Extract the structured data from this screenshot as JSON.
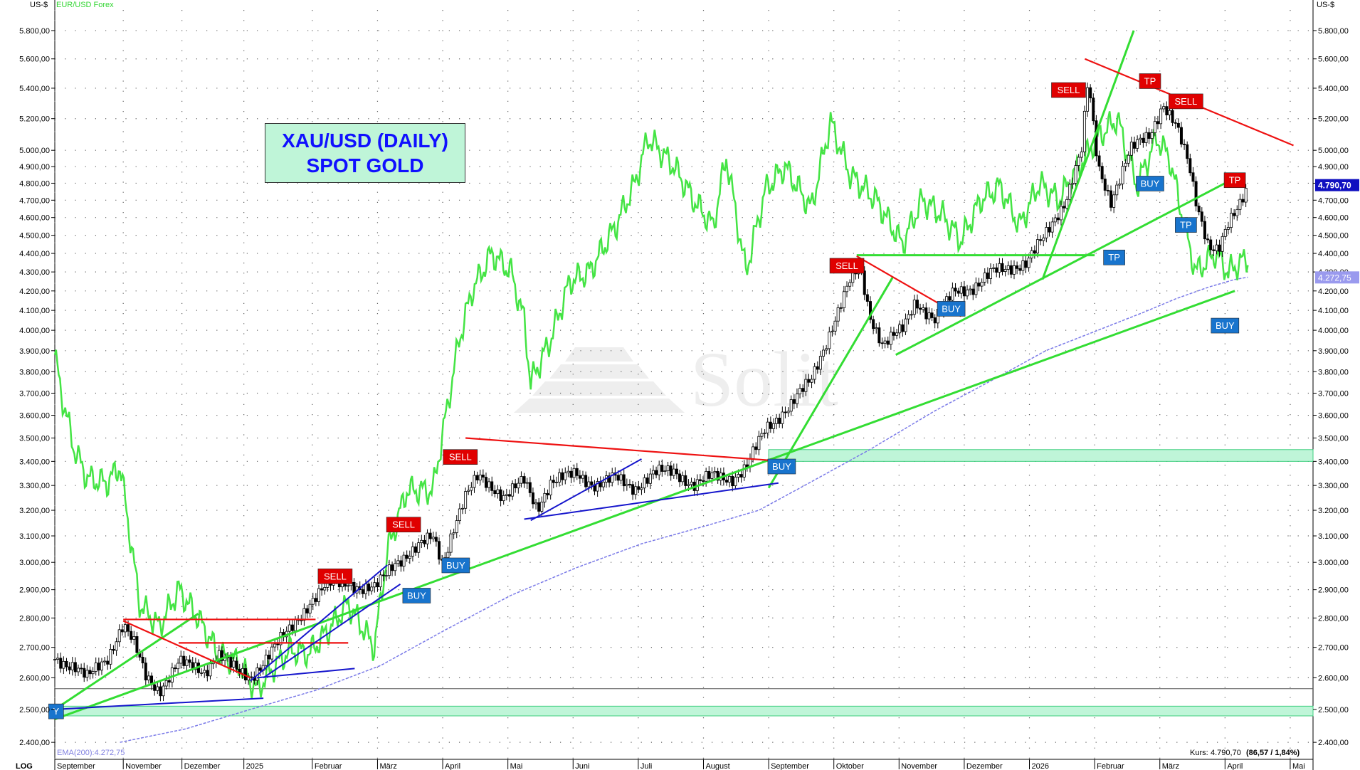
{
  "chart_data": {
    "type": "candlestick",
    "title_line1": "XAU/USD (DAILY)",
    "title_line2": "SPOT GOLD",
    "currency_label_left": "US-$",
    "currency_label_right": "US-$",
    "secondary_series_label": "EUR/USD Forex",
    "scale_label": "LOG",
    "ema_label": "EMA(200):4.272,75",
    "price_line_label": "Kurs:",
    "price_value": "4.790,70",
    "price_change": "(86,57 / 1,84%)",
    "last_price_badge": "4.790,70",
    "ema_badge": "4.272,75",
    "y_scale": "log",
    "ylim": [
      2350,
      5950
    ],
    "y_ticks": [
      2400,
      2500,
      2600,
      2700,
      2800,
      2900,
      3000,
      3100,
      3200,
      3300,
      3400,
      3500,
      3600,
      3700,
      3800,
      3900,
      4000,
      4100,
      4200,
      4300,
      4400,
      4500,
      4600,
      4700,
      4800,
      4900,
      5000,
      5200,
      5400,
      5600,
      5800
    ],
    "y_tick_labels": [
      "2.400,00",
      "2.500,00",
      "2.600,00",
      "2.700,00",
      "2.800,00",
      "2.900,00",
      "3.000,00",
      "3.100,00",
      "3.200,00",
      "3.300,00",
      "3.400,00",
      "3.500,00",
      "3.600,00",
      "3.700,00",
      "3.800,00",
      "3.900,00",
      "4.000,00",
      "4.100,00",
      "4.200,00",
      "4.300,00",
      "4.400,00",
      "4.500,00",
      "4.600,00",
      "4.700,00",
      "4.800,00",
      "4.900,00",
      "5.000,00",
      "5.200,00",
      "5.400,00",
      "5.600,00",
      "5.800,00"
    ],
    "x_labels": [
      "September",
      "November",
      "Dezember",
      "2025",
      "Februar",
      "März",
      "April",
      "Mai",
      "Juni",
      "Juli",
      "August",
      "September",
      "Oktober",
      "November",
      "Dezember",
      "2026",
      "Februar",
      "März",
      "April",
      "Mai"
    ],
    "x_label_pos": [
      0,
      1.05,
      1.95,
      2.9,
      3.95,
      4.95,
      5.95,
      6.95,
      7.95,
      8.95,
      9.95,
      10.95,
      11.95,
      12.95,
      13.95,
      14.95,
      15.95,
      16.95,
      17.95,
      18.95
    ],
    "xlim": [
      0,
      19.3
    ],
    "gold_close": [
      [
        0,
        2660
      ],
      [
        0.3,
        2640
      ],
      [
        0.5,
        2600
      ],
      [
        0.8,
        2660
      ],
      [
        1.0,
        2760
      ],
      [
        1.05,
        2780
      ],
      [
        1.2,
        2720
      ],
      [
        1.4,
        2600
      ],
      [
        1.6,
        2560
      ],
      [
        1.9,
        2650
      ],
      [
        2.3,
        2620
      ],
      [
        2.5,
        2680
      ],
      [
        2.8,
        2620
      ],
      [
        3.0,
        2600
      ],
      [
        3.3,
        2680
      ],
      [
        3.6,
        2760
      ],
      [
        3.9,
        2850
      ],
      [
        4.2,
        2920
      ],
      [
        4.5,
        2930
      ],
      [
        4.7,
        2900
      ],
      [
        4.9,
        2900
      ],
      [
        5.2,
        3000
      ],
      [
        5.5,
        3040
      ],
      [
        5.8,
        3100
      ],
      [
        5.95,
        3000
      ],
      [
        6.1,
        3120
      ],
      [
        6.3,
        3250
      ],
      [
        6.5,
        3340
      ],
      [
        6.7,
        3300
      ],
      [
        6.9,
        3250
      ],
      [
        7.2,
        3320
      ],
      [
        7.4,
        3210
      ],
      [
        7.6,
        3310
      ],
      [
        8.0,
        3350
      ],
      [
        8.3,
        3300
      ],
      [
        8.6,
        3330
      ],
      [
        8.9,
        3290
      ],
      [
        9.2,
        3350
      ],
      [
        9.5,
        3360
      ],
      [
        9.8,
        3300
      ],
      [
        10.1,
        3340
      ],
      [
        10.4,
        3330
      ],
      [
        10.6,
        3370
      ],
      [
        10.9,
        3540
      ],
      [
        11.3,
        3650
      ],
      [
        11.6,
        3760
      ],
      [
        11.9,
        4000
      ],
      [
        12.2,
        4250
      ],
      [
        12.35,
        4330
      ],
      [
        12.5,
        4080
      ],
      [
        12.7,
        3930
      ],
      [
        13.0,
        4000
      ],
      [
        13.2,
        4150
      ],
      [
        13.5,
        4050
      ],
      [
        13.8,
        4200
      ],
      [
        14.1,
        4220
      ],
      [
        14.4,
        4300
      ],
      [
        14.7,
        4330
      ],
      [
        14.9,
        4350
      ],
      [
        15.2,
        4500
      ],
      [
        15.5,
        4700
      ],
      [
        15.75,
        5000
      ],
      [
        15.85,
        5450
      ],
      [
        16.0,
        4900
      ],
      [
        16.2,
        4700
      ],
      [
        16.5,
        5000
      ],
      [
        16.8,
        5100
      ],
      [
        17.0,
        5300
      ],
      [
        17.2,
        5150
      ],
      [
        17.4,
        4900
      ],
      [
        17.5,
        4700
      ],
      [
        17.7,
        4450
      ],
      [
        17.85,
        4420
      ],
      [
        18.0,
        4550
      ],
      [
        18.15,
        4650
      ],
      [
        18.3,
        4790
      ]
    ],
    "ema200": [
      [
        1.0,
        2400
      ],
      [
        2.0,
        2440
      ],
      [
        3.0,
        2500
      ],
      [
        4.0,
        2560
      ],
      [
        5.0,
        2640
      ],
      [
        6.0,
        2760
      ],
      [
        7.0,
        2880
      ],
      [
        8.0,
        2980
      ],
      [
        9.0,
        3070
      ],
      [
        10.0,
        3140
      ],
      [
        10.8,
        3200
      ],
      [
        11.5,
        3300
      ],
      [
        12.5,
        3450
      ],
      [
        13.5,
        3620
      ],
      [
        14.5,
        3780
      ],
      [
        15.2,
        3900
      ],
      [
        16.0,
        4000
      ],
      [
        16.7,
        4090
      ],
      [
        17.2,
        4160
      ],
      [
        17.7,
        4220
      ],
      [
        18.1,
        4260
      ],
      [
        18.3,
        4272
      ]
    ],
    "eurusd_overlay_y": [
      [
        0,
        3880
      ],
      [
        0.1,
        3700
      ],
      [
        0.3,
        3450
      ],
      [
        0.5,
        3330
      ],
      [
        0.8,
        3310
      ],
      [
        1.0,
        3380
      ],
      [
        1.1,
        3200
      ],
      [
        1.3,
        2850
      ],
      [
        1.6,
        2770
      ],
      [
        1.9,
        2900
      ],
      [
        2.2,
        2800
      ],
      [
        2.5,
        2680
      ],
      [
        2.8,
        2650
      ],
      [
        3.1,
        2560
      ],
      [
        3.3,
        2620
      ],
      [
        3.6,
        2690
      ],
      [
        3.9,
        2680
      ],
      [
        4.2,
        2760
      ],
      [
        4.5,
        2850
      ],
      [
        4.9,
        2700
      ],
      [
        5.1,
        3040
      ],
      [
        5.4,
        3280
      ],
      [
        5.8,
        3280
      ],
      [
        6.0,
        3600
      ],
      [
        6.2,
        3950
      ],
      [
        6.4,
        4200
      ],
      [
        6.7,
        4400
      ],
      [
        7.0,
        4300
      ],
      [
        7.2,
        4050
      ],
      [
        7.3,
        3750
      ],
      [
        7.6,
        3950
      ],
      [
        7.9,
        4250
      ],
      [
        8.2,
        4300
      ],
      [
        8.6,
        4550
      ],
      [
        8.9,
        4800
      ],
      [
        9.1,
        5080
      ],
      [
        9.5,
        4900
      ],
      [
        9.8,
        4700
      ],
      [
        10.1,
        4550
      ],
      [
        10.3,
        4960
      ],
      [
        10.6,
        4300
      ],
      [
        10.9,
        4760
      ],
      [
        11.2,
        4900
      ],
      [
        11.6,
        4650
      ],
      [
        11.9,
        5180
      ],
      [
        12.2,
        4850
      ],
      [
        12.6,
        4700
      ],
      [
        13.0,
        4450
      ],
      [
        13.3,
        4700
      ],
      [
        13.6,
        4620
      ],
      [
        13.9,
        4470
      ],
      [
        14.2,
        4700
      ],
      [
        14.5,
        4780
      ],
      [
        14.8,
        4550
      ],
      [
        15.1,
        4800
      ],
      [
        15.4,
        4700
      ],
      [
        15.7,
        4900
      ],
      [
        16.0,
        5080
      ],
      [
        16.3,
        5200
      ],
      [
        16.6,
        4780
      ],
      [
        16.9,
        5080
      ],
      [
        17.1,
        4950
      ],
      [
        17.3,
        4600
      ],
      [
        17.5,
        4300
      ],
      [
        17.8,
        4400
      ],
      [
        18.0,
        4300
      ],
      [
        18.3,
        4380
      ]
    ],
    "signals": [
      {
        "label": "SELL",
        "color": "#e00000",
        "x": 4.3,
        "y": 2950
      },
      {
        "label": "SELL",
        "color": "#e00000",
        "x": 5.35,
        "y": 3145
      },
      {
        "label": "SELL",
        "color": "#e00000",
        "x": 6.22,
        "y": 3420
      },
      {
        "label": "SELL",
        "color": "#e00000",
        "x": 12.15,
        "y": 4335
      },
      {
        "label": "SELL",
        "color": "#e00000",
        "x": 15.55,
        "y": 5390
      },
      {
        "label": "SELL",
        "color": "#e00000",
        "x": 17.35,
        "y": 5315
      },
      {
        "label": "TP",
        "color": "#e00000",
        "x": 16.8,
        "y": 5450
      },
      {
        "label": "TP",
        "color": "#e00000",
        "x": 18.1,
        "y": 4820
      },
      {
        "label": "BUY",
        "color": "#1874cd",
        "x": 5.55,
        "y": 2880
      },
      {
        "label": "BUY",
        "color": "#1874cd",
        "x": 6.15,
        "y": 2990
      },
      {
        "label": "BUY",
        "color": "#1874cd",
        "x": 11.15,
        "y": 3380
      },
      {
        "label": "BUY",
        "color": "#1874cd",
        "x": 13.75,
        "y": 4110
      },
      {
        "label": "BUY",
        "color": "#1874cd",
        "x": 16.8,
        "y": 4800
      },
      {
        "label": "BUY",
        "color": "#1874cd",
        "x": 17.95,
        "y": 4025
      },
      {
        "label": "TP",
        "color": "#1874cd",
        "x": 16.25,
        "y": 4380
      },
      {
        "label": "TP",
        "color": "#1874cd",
        "x": 17.35,
        "y": 4560
      },
      {
        "label": "Y",
        "color": "#1874cd",
        "x": 0.02,
        "y": 2495
      }
    ],
    "green_lines": [
      [
        [
          0,
          2470
        ],
        [
          18.1,
          4200
        ]
      ],
      [
        [
          0,
          2500
        ],
        [
          2.2,
          2815
        ]
      ],
      [
        [
          10.95,
          3290
        ],
        [
          12.85,
          4270
        ]
      ],
      [
        [
          12.9,
          3880
        ],
        [
          18.0,
          4810
        ]
      ],
      [
        [
          15.15,
          4260
        ],
        [
          16.55,
          5800
        ]
      ],
      [
        [
          12.3,
          4390
        ],
        [
          15.95,
          4390
        ]
      ]
    ],
    "red_lines": [
      [
        [
          1.05,
          2790
        ],
        [
          3.0,
          2600
        ]
      ],
      [
        [
          1.05,
          2795
        ],
        [
          4.0,
          2795
        ]
      ],
      [
        [
          1.9,
          2715
        ],
        [
          4.5,
          2715
        ]
      ],
      [
        [
          6.3,
          3500
        ],
        [
          10.95,
          3405
        ]
      ],
      [
        [
          12.3,
          4385
        ],
        [
          13.9,
          4070
        ]
      ],
      [
        [
          15.8,
          5600
        ],
        [
          19.0,
          5030
        ]
      ]
    ],
    "blue_lines": [
      [
        [
          0,
          2500
        ],
        [
          3.2,
          2535
        ]
      ],
      [
        [
          3.1,
          2600
        ],
        [
          4.6,
          2630
        ]
      ],
      [
        [
          3.0,
          2590
        ],
        [
          5.1,
          2990
        ]
      ],
      [
        [
          3.2,
          2600
        ],
        [
          5.3,
          2920
        ]
      ],
      [
        [
          7.3,
          3160
        ],
        [
          9.0,
          3410
        ]
      ],
      [
        [
          7.2,
          3165
        ],
        [
          11.1,
          3310
        ]
      ]
    ],
    "zones": [
      {
        "y0": 2480,
        "y1": 2510,
        "x0": 0,
        "x1": 19.5,
        "color": "#bff5d8"
      },
      {
        "y0": 3400,
        "y1": 3450,
        "x0": 10.95,
        "x1": 19.5,
        "color": "#bff5d8"
      }
    ],
    "grey_line": {
      "y": 2565
    },
    "watermark": "Solit"
  }
}
